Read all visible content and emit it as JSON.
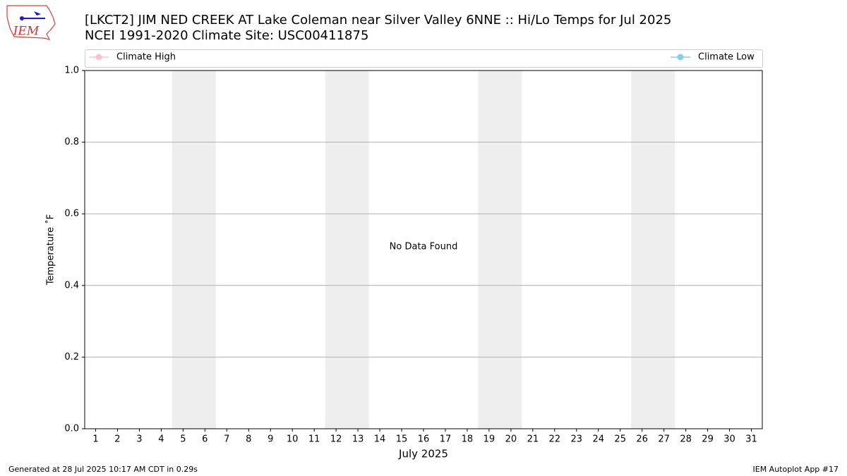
{
  "chart_data": {
    "type": "line",
    "logo_text": "IEM",
    "title": "[LKCT2] JIM NED CREEK  AT Lake Coleman near Silver Valley 6NNE :: Hi/Lo Temps for Jul 2025",
    "subtitle": "NCEI 1991-2020 Climate Site: USC00411875",
    "x_label": "July 2025",
    "y_label": "Temperature ˚F",
    "annotation": "No Data Found",
    "footer_left": "Generated at 28 Jul 2025 10:17 AM CDT in 0.29s",
    "footer_right": "IEM Autoplot App #17",
    "x": [
      1,
      2,
      3,
      4,
      5,
      6,
      7,
      8,
      9,
      10,
      11,
      12,
      13,
      14,
      15,
      16,
      17,
      18,
      19,
      20,
      21,
      22,
      23,
      24,
      25,
      26,
      27,
      28,
      29,
      30,
      31
    ],
    "series": [
      {
        "name": "Climate High",
        "color": "#ffc0cb",
        "values": [
          null,
          null,
          null,
          null,
          null,
          null,
          null,
          null,
          null,
          null,
          null,
          null,
          null,
          null,
          null,
          null,
          null,
          null,
          null,
          null,
          null,
          null,
          null,
          null,
          null,
          null,
          null,
          null,
          null,
          null,
          null
        ]
      },
      {
        "name": "Climate Low",
        "color": "#87ceeb",
        "values": [
          null,
          null,
          null,
          null,
          null,
          null,
          null,
          null,
          null,
          null,
          null,
          null,
          null,
          null,
          null,
          null,
          null,
          null,
          null,
          null,
          null,
          null,
          null,
          null,
          null,
          null,
          null,
          null,
          null,
          null,
          null
        ]
      }
    ],
    "weekend_bands": [
      [
        4.5,
        6.5
      ],
      [
        11.5,
        13.5
      ],
      [
        18.5,
        20.5
      ],
      [
        25.5,
        27.5
      ]
    ],
    "band_color": "#eeeeee",
    "xlim": [
      0.5,
      31.5
    ],
    "xticks": [
      1,
      2,
      3,
      4,
      5,
      6,
      7,
      8,
      9,
      10,
      11,
      12,
      13,
      14,
      15,
      16,
      17,
      18,
      19,
      20,
      21,
      22,
      23,
      24,
      25,
      26,
      27,
      28,
      29,
      30,
      31
    ],
    "ylim": [
      0,
      1
    ],
    "yticks": [
      {
        "value": 0,
        "label": "0.0"
      },
      0.2,
      0.4,
      0.6,
      0.8,
      {
        "value": 1,
        "label": "1.0"
      }
    ],
    "grid": true
  }
}
